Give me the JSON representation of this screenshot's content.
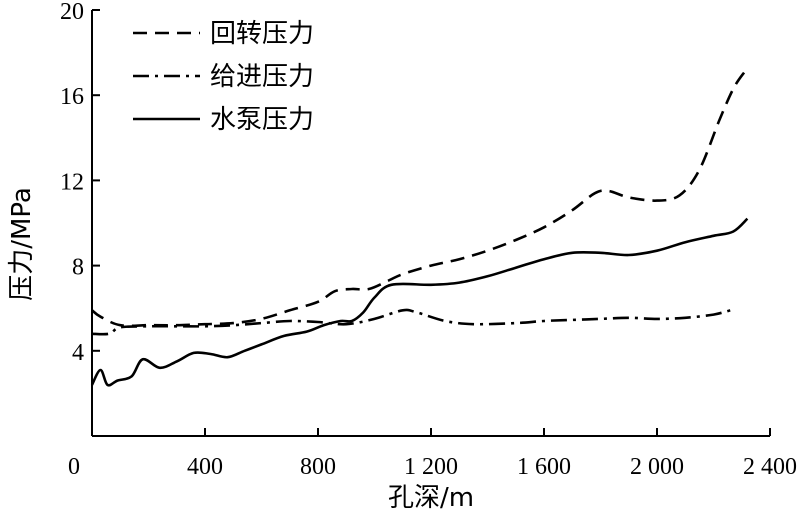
{
  "chart_data": {
    "type": "line",
    "xlabel": "孔深/m",
    "ylabel": "压力/MPa",
    "xlim": [
      0,
      2400
    ],
    "ylim": [
      0,
      20
    ],
    "x_ticks": [
      0,
      400,
      800,
      1200,
      1600,
      2000,
      2400
    ],
    "x_tick_labels": [
      "0",
      "400",
      "800",
      "1 200",
      "1 600",
      "2 000",
      "2 400"
    ],
    "y_ticks": [
      4,
      8,
      12,
      16,
      20
    ],
    "y_tick_labels": [
      "4",
      "8",
      "12",
      "16",
      "20"
    ],
    "legend_position": "top-left",
    "series": [
      {
        "name": "回转压力",
        "style": "dashed",
        "color": "#000000",
        "points": [
          [
            0,
            5.9
          ],
          [
            30,
            5.6
          ],
          [
            100,
            5.2
          ],
          [
            200,
            5.2
          ],
          [
            300,
            5.2
          ],
          [
            400,
            5.25
          ],
          [
            500,
            5.3
          ],
          [
            600,
            5.5
          ],
          [
            700,
            5.9
          ],
          [
            800,
            6.3
          ],
          [
            860,
            6.8
          ],
          [
            920,
            6.9
          ],
          [
            980,
            6.9
          ],
          [
            1050,
            7.3
          ],
          [
            1100,
            7.6
          ],
          [
            1200,
            8.0
          ],
          [
            1300,
            8.3
          ],
          [
            1400,
            8.7
          ],
          [
            1500,
            9.2
          ],
          [
            1600,
            9.8
          ],
          [
            1700,
            10.6
          ],
          [
            1780,
            11.4
          ],
          [
            1830,
            11.5
          ],
          [
            1900,
            11.2
          ],
          [
            2000,
            11.05
          ],
          [
            2080,
            11.3
          ],
          [
            2150,
            12.5
          ],
          [
            2220,
            14.8
          ],
          [
            2270,
            16.3
          ],
          [
            2310,
            17.1
          ]
        ]
      },
      {
        "name": "给进压力",
        "style": "dash-dot",
        "color": "#000000",
        "points": [
          [
            0,
            4.8
          ],
          [
            60,
            4.8
          ],
          [
            100,
            5.1
          ],
          [
            200,
            5.15
          ],
          [
            300,
            5.15
          ],
          [
            400,
            5.15
          ],
          [
            500,
            5.2
          ],
          [
            600,
            5.3
          ],
          [
            700,
            5.4
          ],
          [
            800,
            5.35
          ],
          [
            900,
            5.25
          ],
          [
            1000,
            5.5
          ],
          [
            1100,
            5.9
          ],
          [
            1150,
            5.8
          ],
          [
            1250,
            5.4
          ],
          [
            1350,
            5.25
          ],
          [
            1500,
            5.3
          ],
          [
            1600,
            5.4
          ],
          [
            1700,
            5.45
          ],
          [
            1800,
            5.5
          ],
          [
            1900,
            5.55
          ],
          [
            2000,
            5.5
          ],
          [
            2100,
            5.55
          ],
          [
            2200,
            5.7
          ],
          [
            2260,
            5.9
          ]
        ]
      },
      {
        "name": "水泵压力",
        "style": "solid",
        "color": "#000000",
        "points": [
          [
            0,
            2.4
          ],
          [
            30,
            3.1
          ],
          [
            55,
            2.4
          ],
          [
            90,
            2.6
          ],
          [
            140,
            2.8
          ],
          [
            180,
            3.6
          ],
          [
            240,
            3.2
          ],
          [
            300,
            3.5
          ],
          [
            360,
            3.9
          ],
          [
            420,
            3.85
          ],
          [
            480,
            3.7
          ],
          [
            540,
            4.0
          ],
          [
            600,
            4.3
          ],
          [
            680,
            4.7
          ],
          [
            760,
            4.9
          ],
          [
            820,
            5.2
          ],
          [
            880,
            5.4
          ],
          [
            920,
            5.4
          ],
          [
            960,
            5.8
          ],
          [
            1000,
            6.5
          ],
          [
            1060,
            7.1
          ],
          [
            1200,
            7.1
          ],
          [
            1300,
            7.2
          ],
          [
            1400,
            7.5
          ],
          [
            1500,
            7.9
          ],
          [
            1600,
            8.3
          ],
          [
            1700,
            8.6
          ],
          [
            1800,
            8.6
          ],
          [
            1900,
            8.5
          ],
          [
            2000,
            8.7
          ],
          [
            2100,
            9.1
          ],
          [
            2200,
            9.4
          ],
          [
            2270,
            9.6
          ],
          [
            2320,
            10.2
          ]
        ]
      }
    ]
  }
}
